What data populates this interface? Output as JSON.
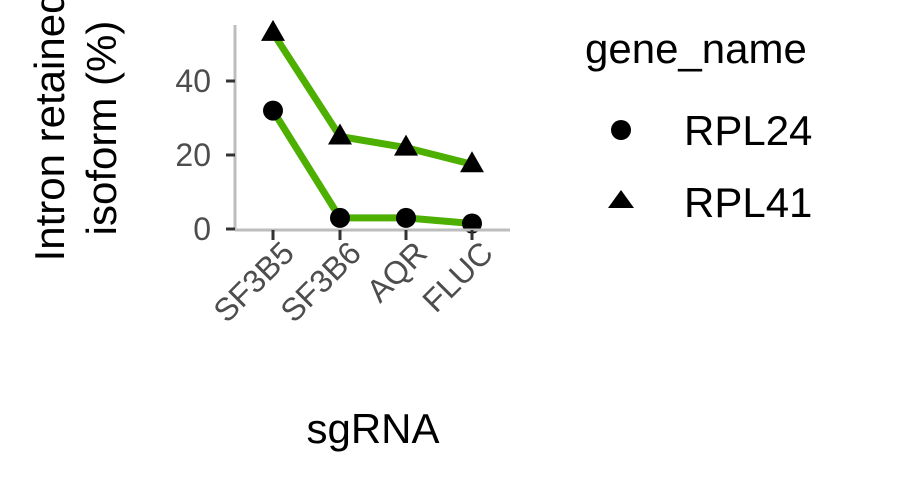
{
  "chart_data": {
    "type": "line",
    "categories": [
      "SF3B5",
      "SF3B6",
      "AQR",
      "FLUC"
    ],
    "series": [
      {
        "name": "RPL24",
        "shape": "circle",
        "values": [
          32,
          3,
          3,
          1.5
        ]
      },
      {
        "name": "RPL41",
        "shape": "triangle",
        "values": [
          53,
          25,
          22,
          17.5
        ]
      }
    ],
    "xlabel": "sgRNA",
    "ylabel_lines": [
      "Intron retained",
      "isoform (%)"
    ],
    "yticks": [
      0,
      20,
      40
    ],
    "ylim": [
      0,
      55
    ],
    "grid": false,
    "legend": {
      "title": "gene_name",
      "placement": "right"
    },
    "colors": {
      "line": "#4daf00",
      "point": "#000000",
      "axis": "#bdbdbd",
      "tick_text": "#4d4d4d"
    }
  }
}
